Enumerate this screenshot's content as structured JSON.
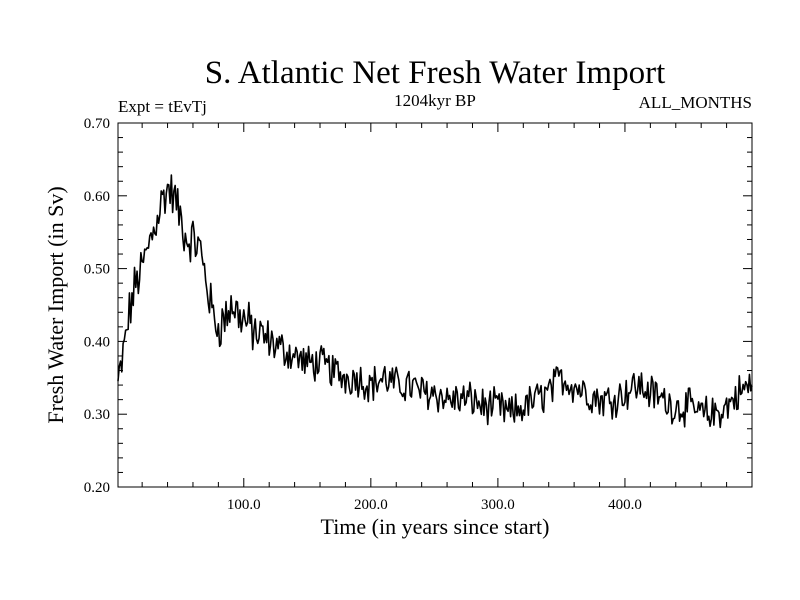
{
  "chart_data": {
    "type": "line",
    "title": "S. Atlantic Net Fresh Water Import",
    "subtitle_left": "Expt = tEvTj",
    "subtitle_center": "1204kyr BP",
    "subtitle_right": "ALL_MONTHS",
    "xlabel": "Time (in years since start)",
    "ylabel": "Fresh Water Import (in Sv)",
    "xlim": [
      1,
      500
    ],
    "ylim": [
      0.2,
      0.7
    ],
    "x_ticks": [
      100,
      200,
      300,
      400
    ],
    "x_tick_labels": [
      "100.0",
      "200.0",
      "300.0",
      "400.0"
    ],
    "y_ticks": [
      0.2,
      0.3,
      0.4,
      0.5,
      0.6,
      0.7
    ],
    "y_tick_labels": [
      "0.20",
      "0.30",
      "0.40",
      "0.50",
      "0.60",
      "0.70"
    ],
    "grid": false,
    "series": [
      {
        "name": "net_fresh_water_import",
        "x": [
          1,
          5,
          10,
          15,
          20,
          25,
          30,
          35,
          40,
          45,
          50,
          55,
          60,
          65,
          70,
          75,
          80,
          85,
          90,
          95,
          100,
          110,
          120,
          130,
          140,
          150,
          160,
          170,
          180,
          190,
          200,
          210,
          220,
          230,
          240,
          250,
          260,
          270,
          280,
          290,
          300,
          310,
          320,
          330,
          340,
          350,
          360,
          370,
          380,
          390,
          400,
          410,
          420,
          430,
          440,
          450,
          460,
          470,
          480,
          490,
          500
        ],
        "values": [
          0.34,
          0.38,
          0.44,
          0.48,
          0.5,
          0.53,
          0.56,
          0.59,
          0.61,
          0.6,
          0.57,
          0.54,
          0.54,
          0.53,
          0.49,
          0.44,
          0.42,
          0.43,
          0.45,
          0.44,
          0.43,
          0.41,
          0.4,
          0.39,
          0.38,
          0.37,
          0.37,
          0.36,
          0.35,
          0.35,
          0.34,
          0.35,
          0.34,
          0.34,
          0.33,
          0.33,
          0.32,
          0.32,
          0.32,
          0.31,
          0.31,
          0.3,
          0.31,
          0.32,
          0.33,
          0.35,
          0.34,
          0.33,
          0.32,
          0.32,
          0.33,
          0.34,
          0.33,
          0.32,
          0.31,
          0.31,
          0.3,
          0.3,
          0.31,
          0.33,
          0.34
        ]
      }
    ]
  }
}
